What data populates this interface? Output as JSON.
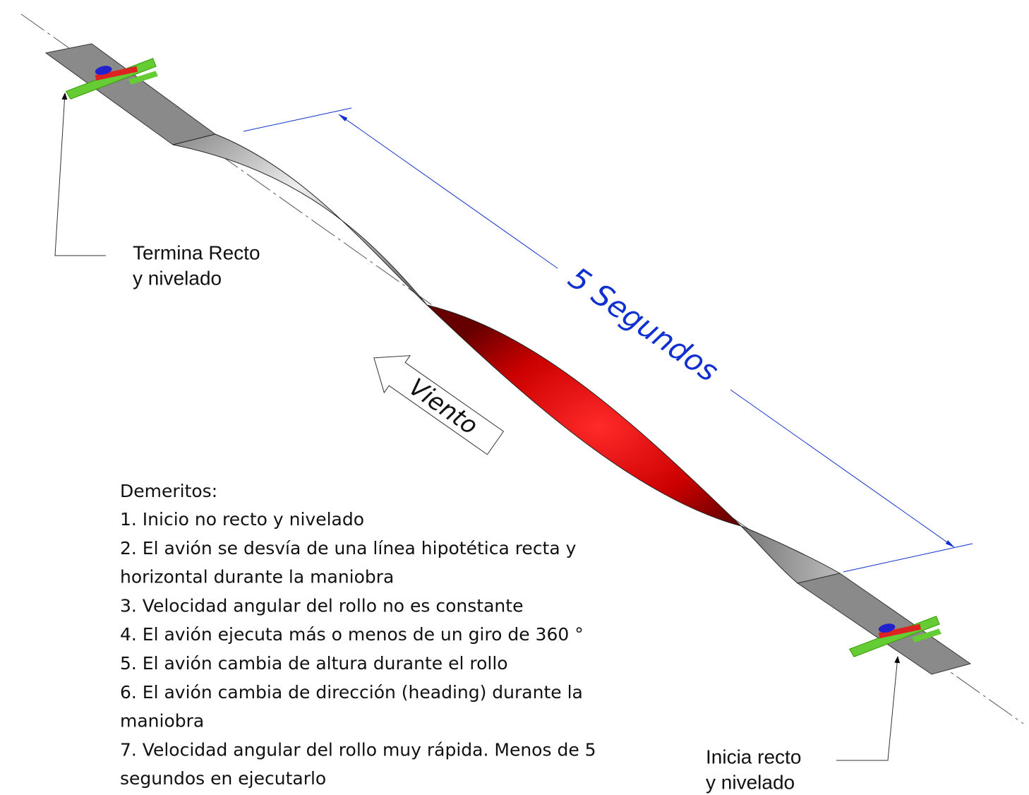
{
  "labels": {
    "end": [
      "Termina Recto",
      "y nivelado"
    ],
    "start": [
      "Inicia recto",
      "y nivelado"
    ],
    "duration": "5 Segundos",
    "wind": "Viento"
  },
  "demerits": {
    "title": "Demeritos:",
    "items": [
      [
        "1. Inicio no recto y nivelado"
      ],
      [
        "2. El avión se desvía de una línea hipotética recta y",
        "horizontal durante la maniobra"
      ],
      [
        "3. Velocidad angular del rollo no es constante"
      ],
      [
        "4. El avión ejecuta más o menos de un giro de 360 °"
      ],
      [
        "5. El avión cambia de altura durante el rollo"
      ],
      [
        "6. El avión cambia de dirección (heading) durante la",
        "maniobra"
      ],
      [
        "7. Velocidad angular del rollo muy rápida.  Menos de 5",
        "segundos en ejecutarlo"
      ]
    ]
  }
}
